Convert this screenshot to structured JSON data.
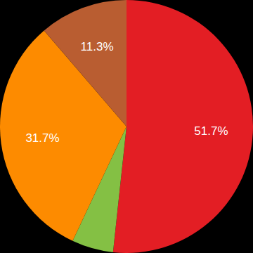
{
  "chart_data": {
    "type": "pie",
    "values": [
      51.7,
      5.3,
      31.7,
      11.3
    ],
    "value_labels": [
      "51.7%",
      null,
      "31.7%",
      "11.3%"
    ],
    "colors": [
      "#e31e24",
      "#84c044",
      "#fd8b00",
      "#b95d31"
    ],
    "data_labels": true
  }
}
